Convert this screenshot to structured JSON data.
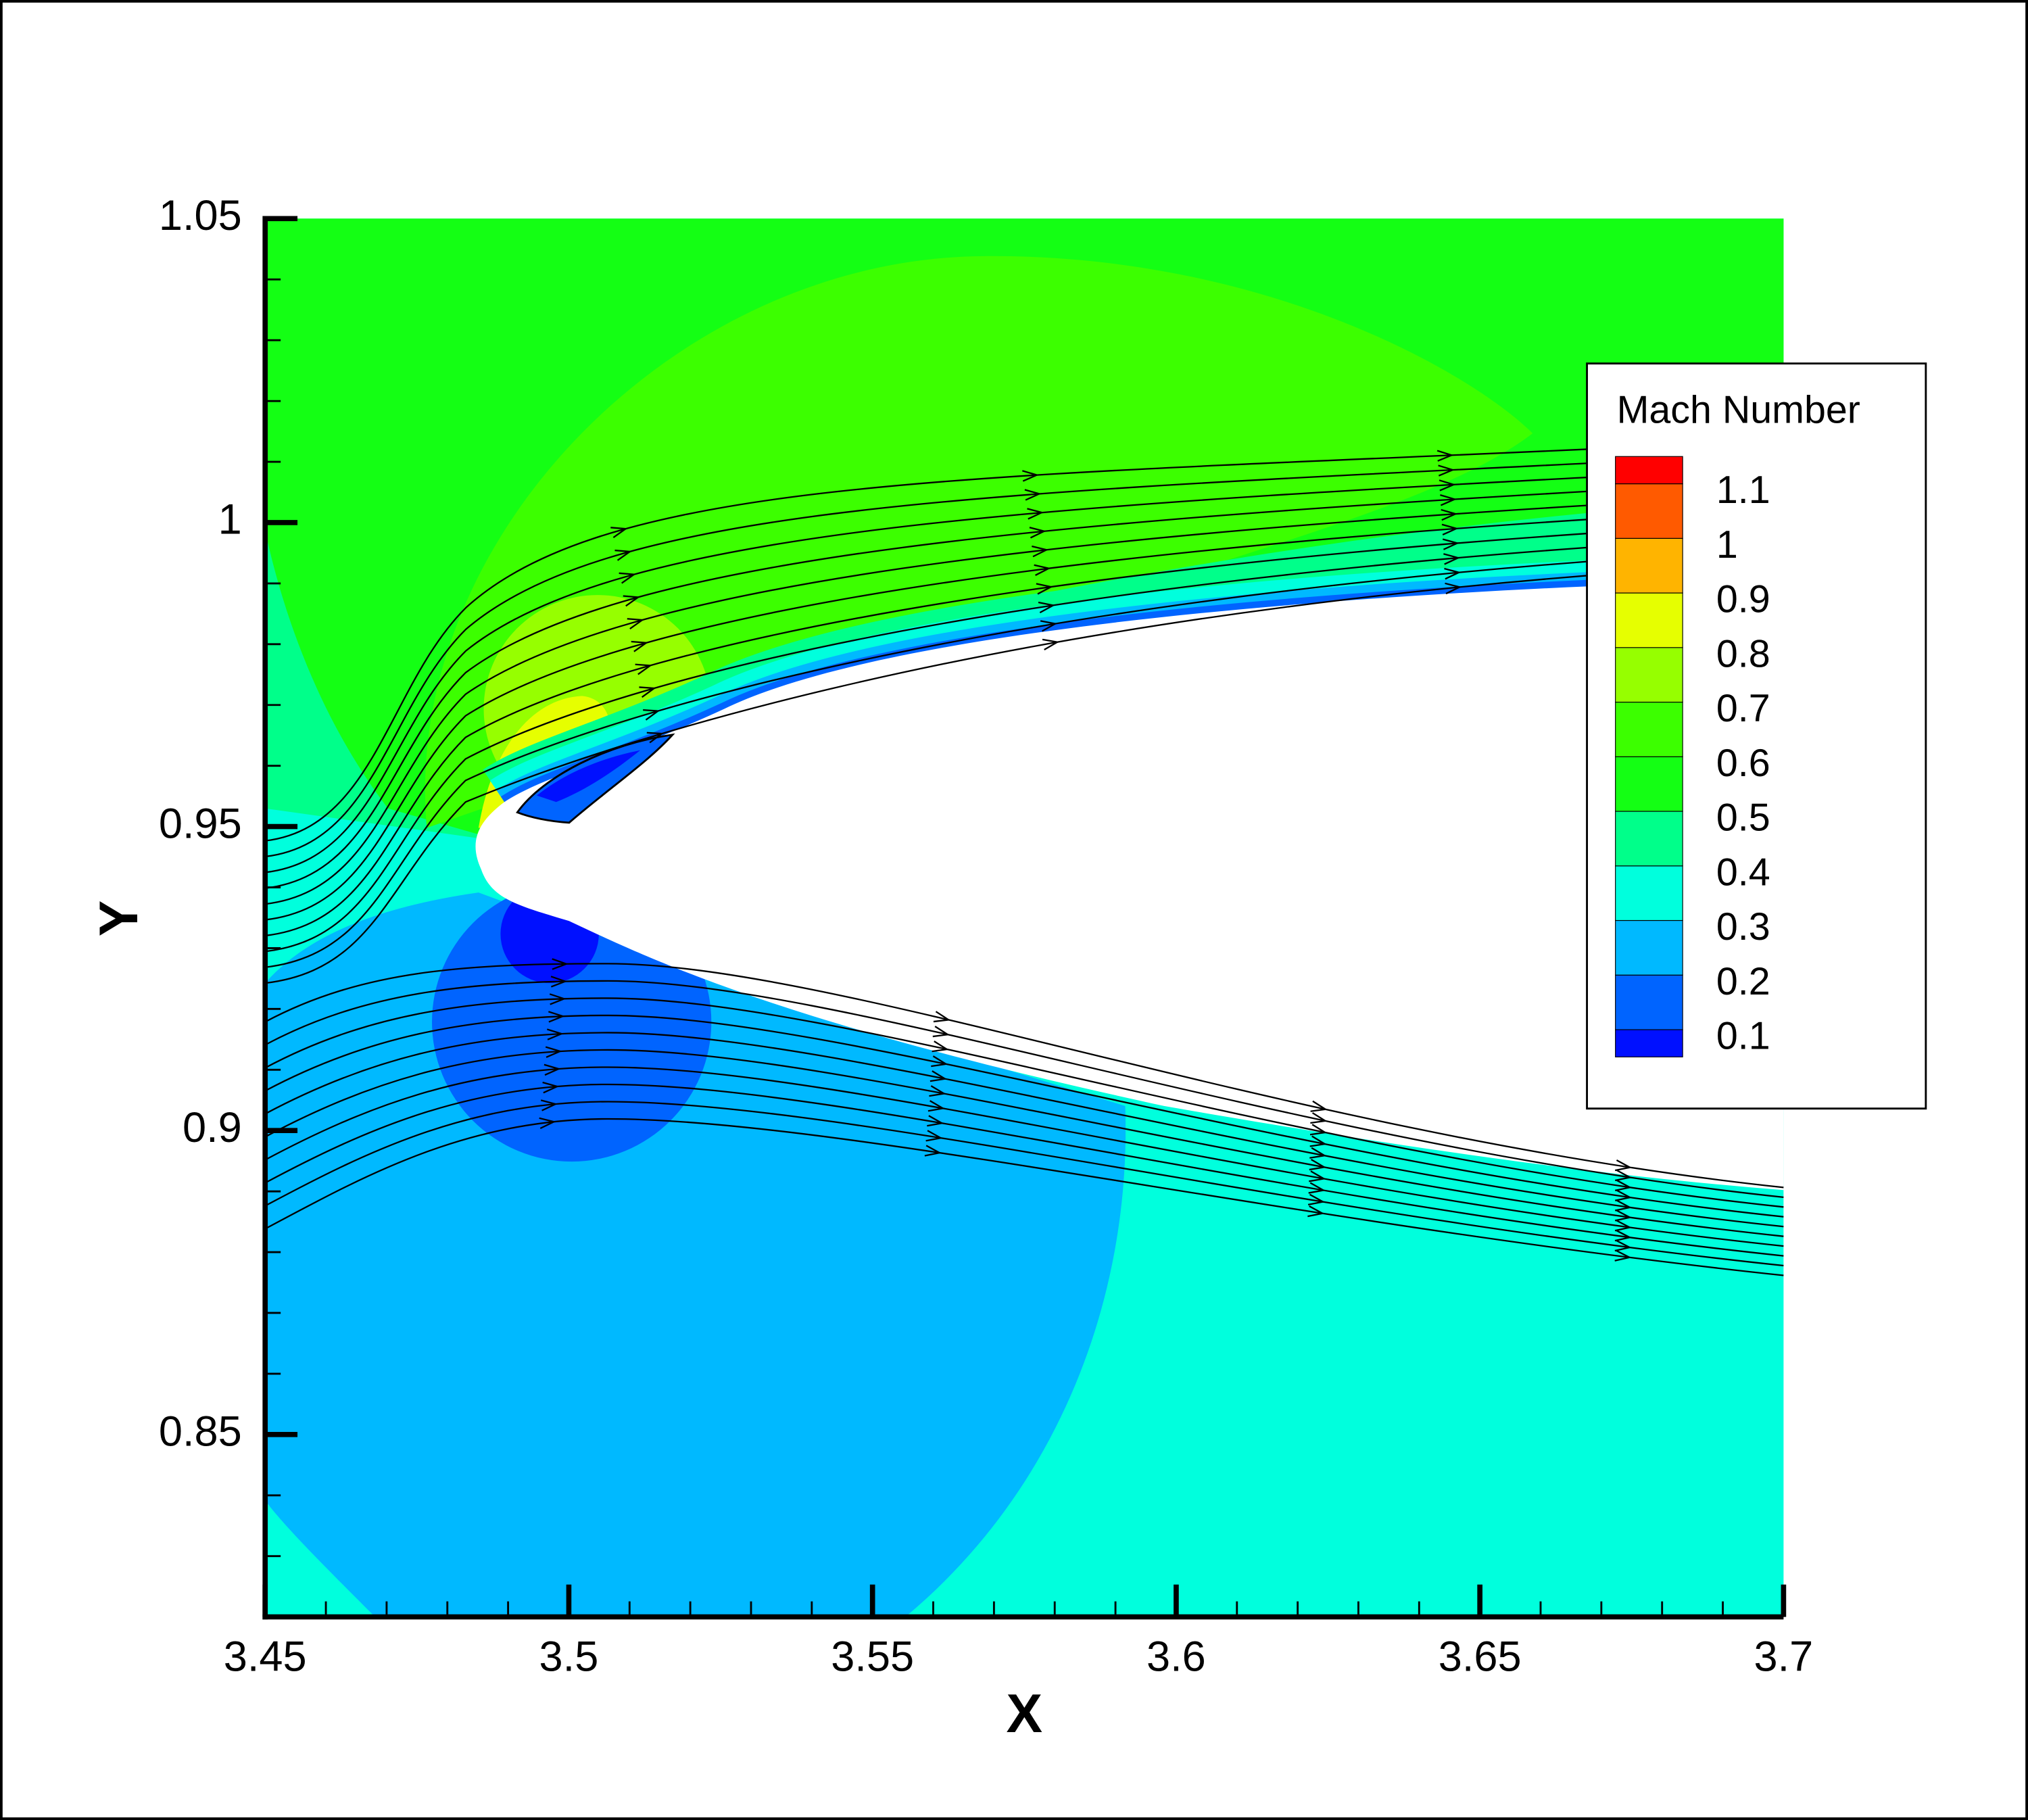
{
  "chart_data": {
    "type": "contour",
    "xlabel": "X",
    "ylabel": "Y",
    "xlim": [
      3.45,
      3.7
    ],
    "ylim": [
      0.82,
      1.05
    ],
    "xticks": [
      3.45,
      3.5,
      3.55,
      3.6,
      3.65,
      3.7
    ],
    "yticks": [
      0.85,
      0.9,
      0.95,
      1,
      1.05
    ],
    "legend": {
      "title": "Mach Number",
      "levels": [
        0.1,
        0.2,
        0.3,
        0.4,
        0.5,
        0.6,
        0.7,
        0.8,
        0.9,
        1,
        1.1
      ],
      "colors": [
        "#0010ff",
        "#0064ff",
        "#00b9ff",
        "#00ffdd",
        "#00ff8a",
        "#14ff14",
        "#3cff00",
        "#96ff00",
        "#e6ff00",
        "#ffb400",
        "#ff5a00",
        "#ff0000"
      ]
    }
  }
}
